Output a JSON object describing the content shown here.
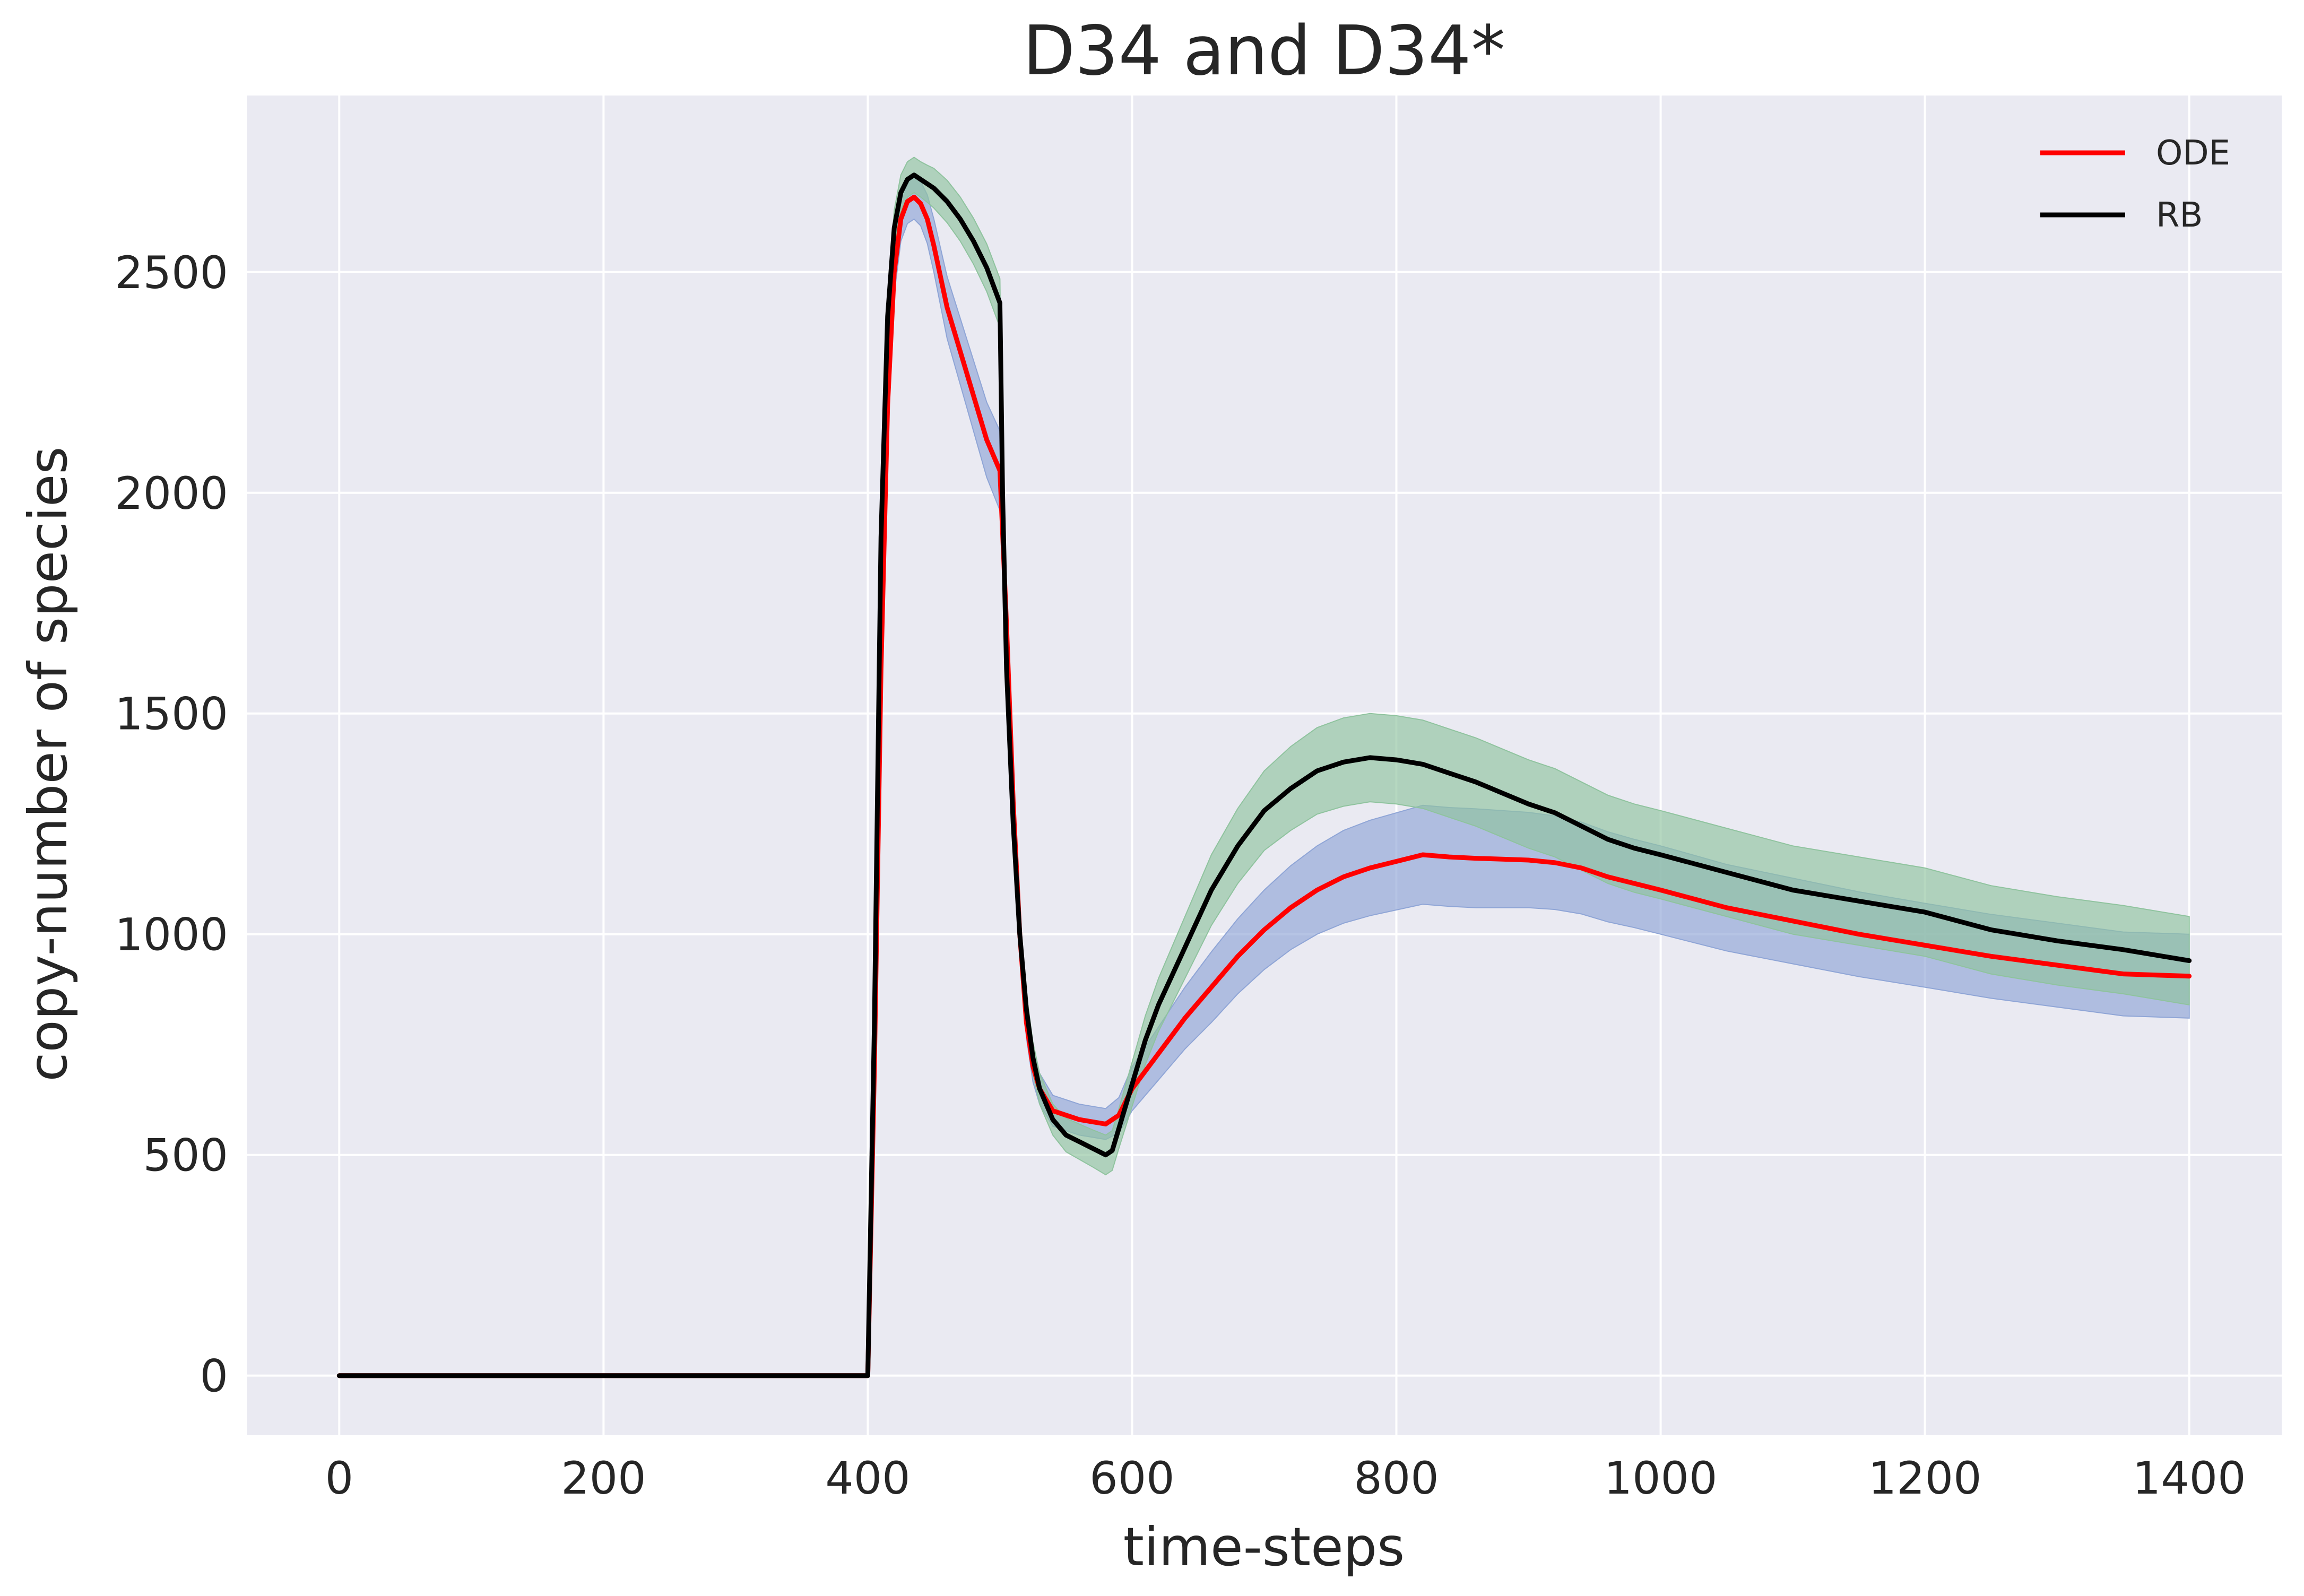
{
  "chart_data": {
    "type": "line",
    "title": "D34 and D34*",
    "xlabel": "time-steps",
    "ylabel": "copy-number of species",
    "xlim": [
      -70,
      1470
    ],
    "ylim": [
      -135,
      2900
    ],
    "xticks": [
      0,
      200,
      400,
      600,
      800,
      1000,
      1200,
      1400
    ],
    "yticks": [
      0,
      500,
      1000,
      1500,
      2000,
      2500
    ],
    "grid": true,
    "legend_position": "top-right",
    "colors": {
      "background": "#eaeaf2",
      "grid": "#ffffff",
      "ODE": "#ff0000",
      "RB": "#000000",
      "ODE_band": "#8fa5d6",
      "RB_band": "#8fc39e"
    },
    "series": [
      {
        "name": "ODE",
        "color": "#ff0000",
        "x": [
          0,
          400,
          405,
          410,
          415,
          420,
          425,
          430,
          435,
          440,
          445,
          450,
          460,
          470,
          480,
          490,
          500,
          505,
          510,
          515,
          520,
          525,
          530,
          540,
          550,
          560,
          570,
          580,
          590,
          600,
          620,
          640,
          660,
          680,
          700,
          720,
          740,
          760,
          780,
          800,
          820,
          840,
          860,
          880,
          900,
          920,
          940,
          960,
          980,
          1000,
          1050,
          1100,
          1150,
          1200,
          1250,
          1300,
          1350,
          1400
        ],
        "y": [
          0,
          0,
          700,
          1600,
          2200,
          2500,
          2620,
          2660,
          2670,
          2655,
          2620,
          2560,
          2420,
          2320,
          2220,
          2120,
          2050,
          1700,
          1300,
          1000,
          800,
          700,
          650,
          600,
          590,
          580,
          575,
          570,
          590,
          650,
          730,
          810,
          880,
          950,
          1010,
          1060,
          1100,
          1130,
          1150,
          1165,
          1180,
          1175,
          1172,
          1170,
          1168,
          1162,
          1150,
          1130,
          1115,
          1100,
          1060,
          1030,
          1000,
          975,
          950,
          930,
          910,
          905
        ],
        "band_half_width": [
          0,
          0,
          20,
          30,
          40,
          50,
          50,
          50,
          50,
          50,
          55,
          60,
          70,
          75,
          80,
          85,
          90,
          70,
          50,
          40,
          35,
          35,
          35,
          35,
          35,
          35,
          35,
          35,
          40,
          50,
          60,
          70,
          80,
          85,
          90,
          95,
          100,
          105,
          108,
          110,
          112,
          112,
          112,
          110,
          108,
          106,
          104,
          102,
          100,
          100,
          98,
          97,
          96,
          95,
          95,
          95,
          95,
          95
        ]
      },
      {
        "name": "RB",
        "color": "#000000",
        "x": [
          0,
          400,
          405,
          410,
          415,
          420,
          425,
          430,
          435,
          440,
          445,
          450,
          460,
          470,
          480,
          490,
          500,
          502,
          505,
          510,
          515,
          520,
          525,
          530,
          540,
          550,
          560,
          570,
          580,
          585,
          590,
          600,
          610,
          620,
          640,
          660,
          680,
          700,
          720,
          740,
          760,
          780,
          800,
          820,
          840,
          860,
          880,
          900,
          920,
          940,
          960,
          980,
          1000,
          1050,
          1100,
          1150,
          1200,
          1250,
          1300,
          1350,
          1400
        ],
        "y": [
          0,
          0,
          800,
          1900,
          2400,
          2600,
          2680,
          2710,
          2720,
          2710,
          2700,
          2690,
          2660,
          2620,
          2570,
          2510,
          2430,
          2000,
          1600,
          1250,
          1000,
          830,
          720,
          650,
          580,
          545,
          530,
          515,
          500,
          510,
          560,
          660,
          760,
          840,
          970,
          1100,
          1200,
          1280,
          1330,
          1370,
          1390,
          1400,
          1395,
          1385,
          1365,
          1345,
          1320,
          1295,
          1275,
          1245,
          1215,
          1195,
          1180,
          1140,
          1100,
          1075,
          1050,
          1010,
          985,
          965,
          940
        ],
        "band_half_width": [
          0,
          0,
          20,
          30,
          35,
          40,
          40,
          40,
          40,
          40,
          42,
          45,
          48,
          50,
          52,
          54,
          55,
          45,
          40,
          35,
          35,
          35,
          35,
          35,
          35,
          38,
          40,
          42,
          45,
          45,
          45,
          50,
          55,
          60,
          70,
          80,
          85,
          90,
          95,
          98,
          100,
          100,
          100,
          100,
          100,
          100,
          100,
          100,
          100,
          100,
          100,
          100,
          100,
          100,
          100,
          100,
          100,
          100,
          100,
          100,
          100
        ]
      }
    ]
  }
}
